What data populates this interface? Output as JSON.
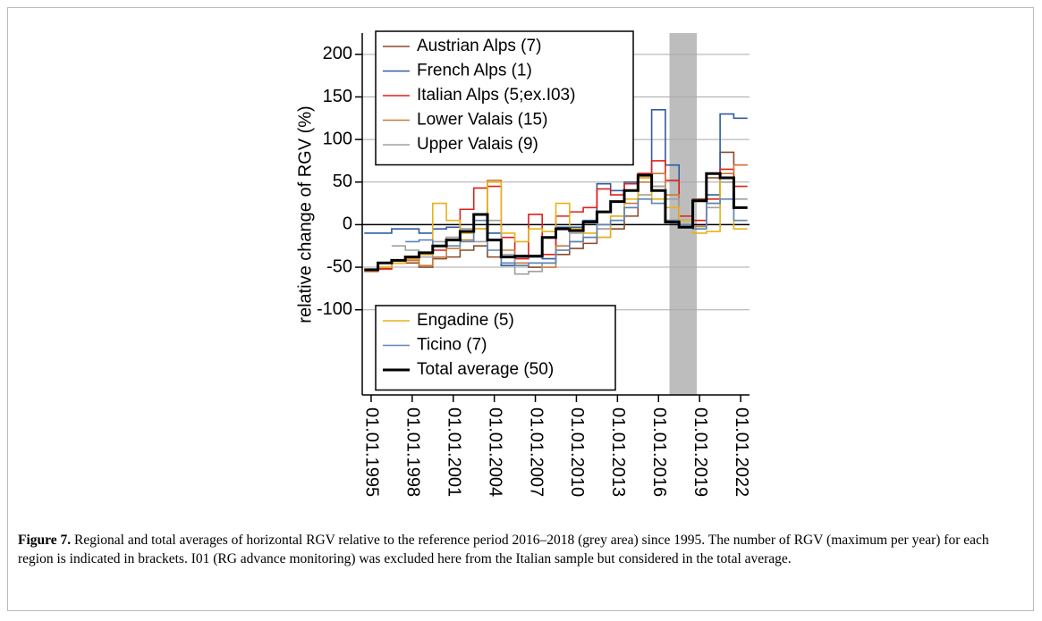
{
  "chart_data": {
    "type": "step",
    "y_label": "relative change of RGV (%)",
    "x": [
      1995,
      1996,
      1997,
      1998,
      1999,
      2000,
      2001,
      2002,
      2003,
      2004,
      2005,
      2006,
      2007,
      2008,
      2009,
      2010,
      2011,
      2012,
      2013,
      2014,
      2015,
      2016,
      2017,
      2018,
      2019,
      2020,
      2021,
      2022
    ],
    "xlim": [
      1994.35,
      2022.65
    ],
    "xticks": [
      {
        "value": 1995,
        "label": "01.01.1995"
      },
      {
        "value": 1998,
        "label": "01.01.1998"
      },
      {
        "value": 2001,
        "label": "01.01.2001"
      },
      {
        "value": 2004,
        "label": "01.01.2004"
      },
      {
        "value": 2007,
        "label": "01.01.2007"
      },
      {
        "value": 2010,
        "label": "01.01.2010"
      },
      {
        "value": 2013,
        "label": "01.01.2013"
      },
      {
        "value": 2016,
        "label": "01.01.2016"
      },
      {
        "value": 2019,
        "label": "01.01.2019"
      },
      {
        "value": 2022,
        "label": "01.01.2022"
      }
    ],
    "ylim": [
      -200,
      225
    ],
    "yticks": [
      -100,
      -50,
      0,
      50,
      100,
      150,
      200
    ],
    "grid": true,
    "shade_x": [
      2016.8,
      2018.8
    ],
    "shade_color": "#bdbdbd",
    "series": [
      {
        "name": "Austrian Alps (7)",
        "color": "#8b4a2b",
        "legend_box": 1,
        "values": [
          -55,
          -52,
          -45,
          -45,
          -50,
          -40,
          -38,
          -30,
          -25,
          -38,
          -45,
          -48,
          -50,
          -45,
          -35,
          -28,
          -22,
          -15,
          -5,
          10,
          55,
          45,
          5,
          0,
          30,
          55,
          85,
          70
        ]
      },
      {
        "name": "French Alps (1)",
        "color": "#2f5d9e",
        "legend_box": 1,
        "values": [
          -10,
          -10,
          -5,
          -5,
          -10,
          -5,
          -3,
          -5,
          -5,
          -10,
          -48,
          -38,
          -38,
          -40,
          -3,
          -3,
          5,
          48,
          40,
          50,
          60,
          135,
          70,
          5,
          -2,
          35,
          130,
          125
        ]
      },
      {
        "name": "Italian Alps (5;ex.I03)",
        "color": "#e0201b",
        "legend_box": 1,
        "values": [
          -53,
          -52,
          -45,
          -42,
          -35,
          -30,
          -15,
          18,
          43,
          45,
          -15,
          -40,
          12,
          -35,
          10,
          15,
          20,
          42,
          35,
          48,
          60,
          75,
          52,
          10,
          5,
          30,
          65,
          45
        ]
      },
      {
        "name": "Lower Valais (15)",
        "color": "#c87a3c",
        "legend_box": 1,
        "values": [
          -55,
          -50,
          -45,
          -42,
          -48,
          -38,
          -28,
          -18,
          -5,
          52,
          -30,
          -45,
          -45,
          -50,
          -25,
          -20,
          -15,
          -5,
          5,
          25,
          50,
          60,
          35,
          5,
          -2,
          25,
          60,
          70
        ]
      },
      {
        "name": "Upper Valais (9)",
        "color": "#a0a0a0",
        "legend_box": 1,
        "values": [
          null,
          null,
          -25,
          -30,
          -38,
          -20,
          -15,
          -5,
          -20,
          5,
          -35,
          -58,
          -55,
          -45,
          -30,
          -10,
          -15,
          -5,
          10,
          20,
          35,
          45,
          30,
          0,
          -5,
          20,
          50,
          30
        ]
      },
      {
        "name": "Engadine (5)",
        "color": "#e6b21a",
        "legend_box": 2,
        "values": [
          -53,
          -50,
          -45,
          -40,
          -35,
          25,
          5,
          -10,
          -5,
          50,
          -10,
          -20,
          -5,
          -8,
          25,
          -5,
          -10,
          -15,
          10,
          30,
          55,
          30,
          20,
          5,
          -10,
          -8,
          55,
          -5
        ]
      },
      {
        "name": "Ticino (7)",
        "color": "#5b86b8",
        "legend_box": 2,
        "values": [
          null,
          null,
          null,
          -20,
          -18,
          -25,
          -25,
          -20,
          5,
          -30,
          -45,
          -48,
          -45,
          -45,
          -30,
          -20,
          -15,
          0,
          5,
          20,
          30,
          25,
          5,
          0,
          -5,
          25,
          30,
          5
        ]
      },
      {
        "name": "Total average (50)",
        "color": "#000000",
        "legend_box": 2,
        "values": [
          -53,
          -45,
          -42,
          -38,
          -33,
          -25,
          -18,
          -8,
          12,
          -18,
          -38,
          -37,
          -37,
          -15,
          -5,
          -7,
          3,
          15,
          27,
          40,
          58,
          40,
          3,
          -3,
          28,
          60,
          55,
          20
        ]
      }
    ]
  },
  "caption": {
    "label": "Figure 7.",
    "text": "Regional and total averages of horizontal RGV relative to the reference period 2016–2018 (grey area) since 1995. The number of RGV (maximum per year) for each region is indicated in brackets. I01 (RG advance monitoring) was excluded here from the Italian sample but considered in the total average."
  }
}
